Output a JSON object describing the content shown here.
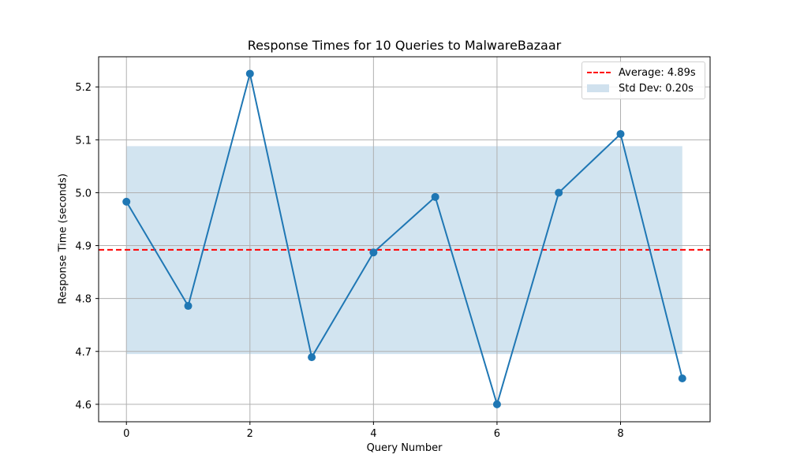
{
  "chart_data": {
    "type": "line",
    "title": "Response Times for 10 Queries to MalwareBazaar",
    "xlabel": "Query Number",
    "ylabel": "Response Time (seconds)",
    "x": [
      0,
      1,
      2,
      3,
      4,
      5,
      6,
      7,
      8,
      9
    ],
    "series": [
      {
        "name": "Response Time",
        "color": "#1f77b4",
        "marker": "circle",
        "values": [
          4.983,
          4.786,
          5.225,
          4.689,
          4.887,
          4.992,
          4.6,
          5.0,
          5.111,
          4.649
        ]
      }
    ],
    "reference_lines": [
      {
        "name": "Average: 4.89s",
        "orientation": "horizontal",
        "y": 4.892,
        "style": "dashed",
        "color": "#ff0000"
      }
    ],
    "bands": [
      {
        "name": "Std Dev: 0.20s",
        "x_range": [
          0,
          9
        ],
        "y_range": [
          4.695,
          5.088
        ],
        "color": "#1f77b4",
        "alpha": 0.2
      }
    ],
    "xlim": [
      -0.45,
      9.45
    ],
    "ylim": [
      4.567,
      5.257
    ],
    "xticks": [
      0,
      2,
      4,
      6,
      8
    ],
    "yticks": [
      4.6,
      4.7,
      4.8,
      4.9,
      5.0,
      5.1,
      5.2
    ],
    "ytick_labels": [
      "4.6",
      "4.7",
      "4.8",
      "4.9",
      "5.0",
      "5.1",
      "5.2"
    ],
    "xtick_labels": [
      "0",
      "2",
      "4",
      "6",
      "8"
    ],
    "grid": true,
    "legend_position": "upper right",
    "legend": [
      {
        "label": "Average: 4.89s",
        "type": "dashed-line",
        "color": "#ff0000"
      },
      {
        "label": "Std Dev: 0.20s",
        "type": "patch",
        "color": "#d0e1ee"
      }
    ]
  }
}
